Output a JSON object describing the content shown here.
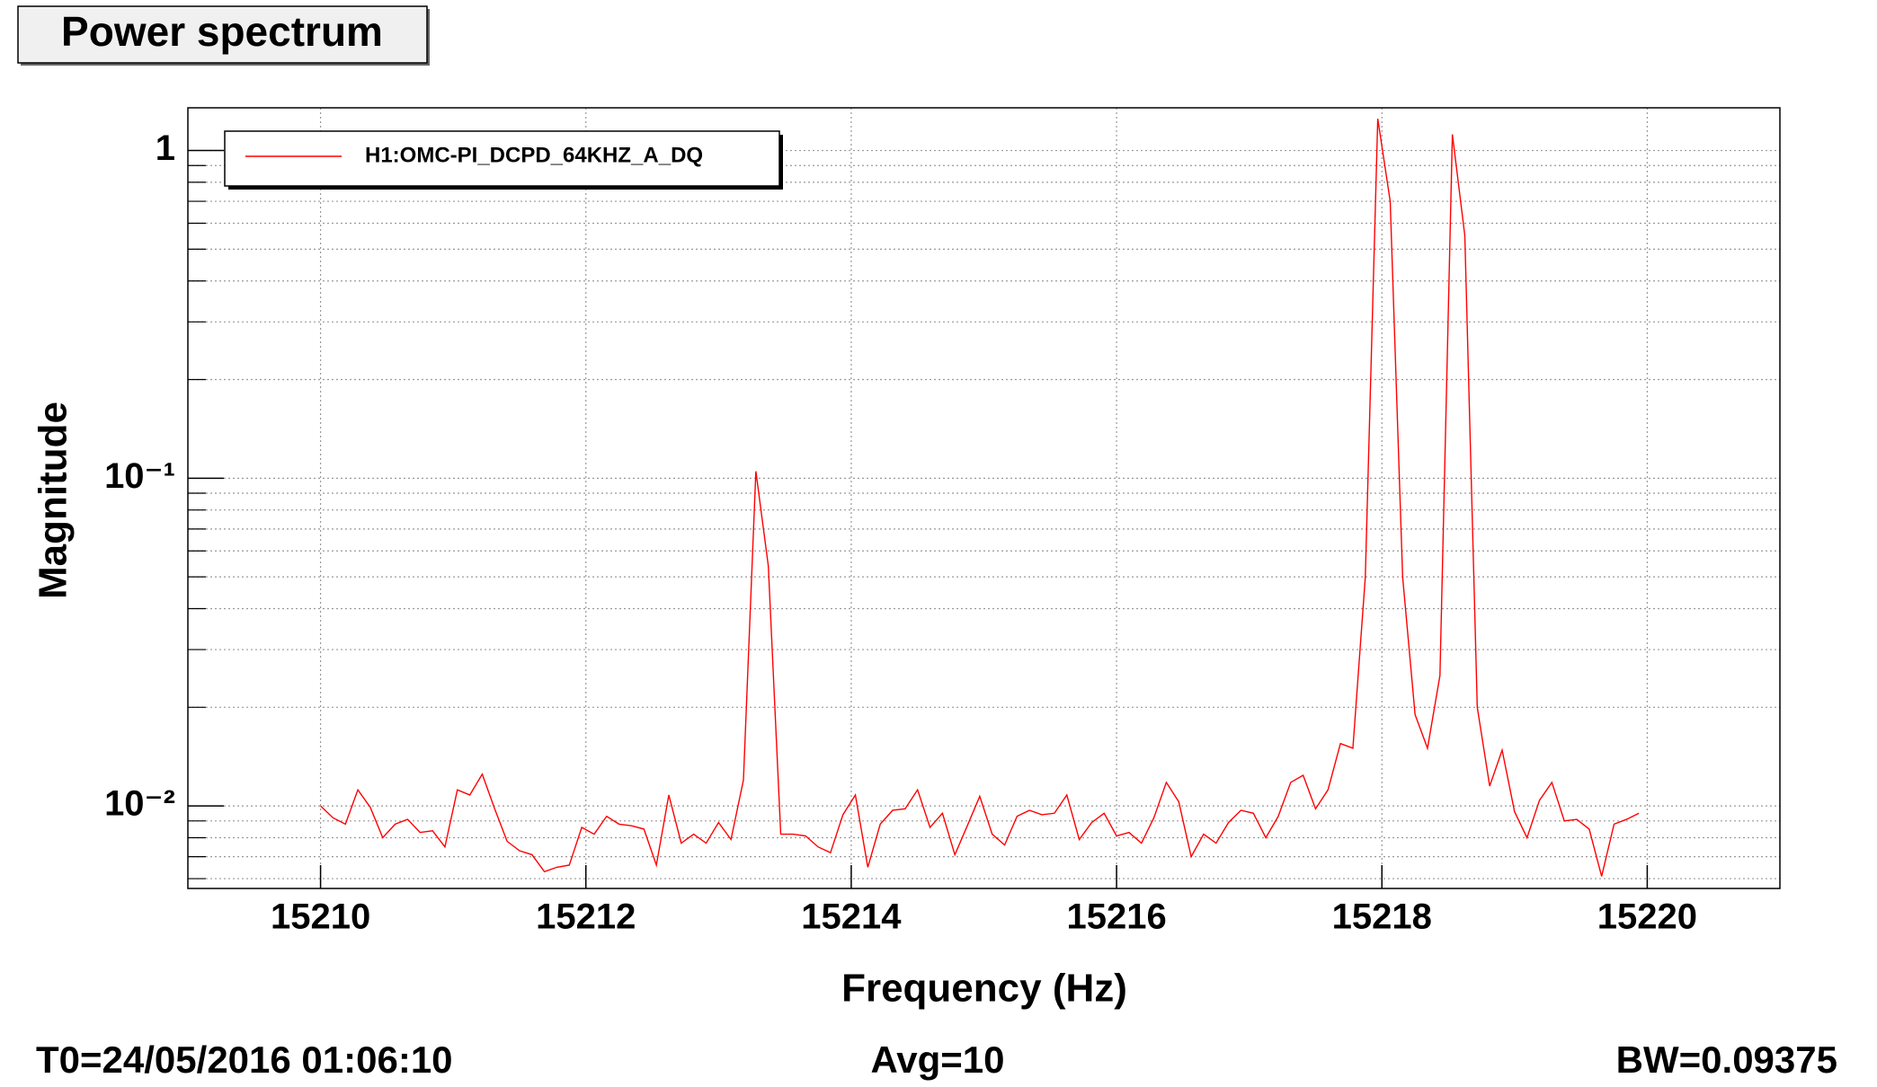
{
  "chart_data": {
    "type": "line",
    "title": "Power spectrum",
    "x_label": "Frequency (Hz)",
    "y_label": "Magnitude",
    "footer": {
      "start_time": "T0=24/05/2016 01:06:10",
      "averages": "Avg=10",
      "bandwidth": "BW=0.09375"
    },
    "log_y": true,
    "grid": true,
    "legend_position": "upper-left",
    "xlim": [
      15209,
      15221
    ],
    "ylim": [
      0.0056,
      1.35
    ],
    "xticks": [
      15210,
      15212,
      15214,
      15216,
      15218,
      15220
    ],
    "yticks": [
      {
        "value": 0.01,
        "label": "10⁻²"
      },
      {
        "value": 0.1,
        "label": "10⁻¹"
      },
      1
    ],
    "yminor_ticks": [
      0.006,
      0.007,
      0.008,
      0.009,
      0.02,
      0.03,
      0.04,
      0.05,
      0.06,
      0.07,
      0.08,
      0.09,
      0.2,
      0.3,
      0.4,
      0.5,
      0.6,
      0.7,
      0.8,
      0.9
    ],
    "x": [
      15210,
      15210.09375,
      15210.1875,
      15210.28125,
      15210.375,
      15210.46875,
      15210.5625,
      15210.65625,
      15210.75,
      15210.84375,
      15210.9375,
      15211.03125,
      15211.125,
      15211.21875,
      15211.3125,
      15211.40625,
      15211.5,
      15211.59375,
      15211.6875,
      15211.78125,
      15211.875,
      15211.96875,
      15212.0625,
      15212.15625,
      15212.25,
      15212.34375,
      15212.4375,
      15212.53125,
      15212.625,
      15212.71875,
      15212.8125,
      15212.90625,
      15213,
      15213.09375,
      15213.1875,
      15213.28125,
      15213.375,
      15213.46875,
      15213.5625,
      15213.65625,
      15213.75,
      15213.84375,
      15213.9375,
      15214.03125,
      15214.125,
      15214.21875,
      15214.3125,
      15214.40625,
      15214.5,
      15214.59375,
      15214.6875,
      15214.78125,
      15214.875,
      15214.96875,
      15215.0625,
      15215.15625,
      15215.25,
      15215.34375,
      15215.4375,
      15215.53125,
      15215.625,
      15215.71875,
      15215.8125,
      15215.90625,
      15216,
      15216.09375,
      15216.1875,
      15216.28125,
      15216.375,
      15216.46875,
      15216.5625,
      15216.65625,
      15216.75,
      15216.84375,
      15216.9375,
      15217.03125,
      15217.125,
      15217.21875,
      15217.3125,
      15217.40625,
      15217.5,
      15217.59375,
      15217.6875,
      15217.78125,
      15217.875,
      15217.96875,
      15218.0625,
      15218.15625,
      15218.25,
      15218.34375,
      15218.4375,
      15218.53125,
      15218.625,
      15218.71875,
      15218.8125,
      15218.90625,
      15219,
      15219.09375,
      15219.1875,
      15219.28125,
      15219.375,
      15219.46875,
      15219.5625,
      15219.65625,
      15219.75,
      15219.84375,
      15219.9375
    ],
    "series": [
      {
        "name": "H1:OMC-PI_DCPD_64KHZ_A_DQ",
        "color": "#ff0000",
        "values": [
          0.01,
          0.0092,
          0.0088,
          0.0112,
          0.0099,
          0.008,
          0.0088,
          0.0091,
          0.0083,
          0.0084,
          0.0075,
          0.0112,
          0.0108,
          0.0125,
          0.0098,
          0.0078,
          0.0073,
          0.0071,
          0.0063,
          0.0065,
          0.0066,
          0.0086,
          0.0082,
          0.0093,
          0.0088,
          0.0087,
          0.0085,
          0.0066,
          0.0108,
          0.0077,
          0.0082,
          0.0077,
          0.0089,
          0.0079,
          0.012,
          0.105,
          0.054,
          0.0082,
          0.0082,
          0.0081,
          0.0075,
          0.0072,
          0.0094,
          0.0108,
          0.0065,
          0.0088,
          0.0097,
          0.0098,
          0.0112,
          0.0086,
          0.0095,
          0.0071,
          0.0087,
          0.0107,
          0.0082,
          0.0076,
          0.0093,
          0.0097,
          0.0094,
          0.0095,
          0.0108,
          0.0079,
          0.0089,
          0.0095,
          0.0081,
          0.0083,
          0.0077,
          0.0092,
          0.0118,
          0.0103,
          0.007,
          0.0082,
          0.0077,
          0.0089,
          0.0097,
          0.0095,
          0.008,
          0.0093,
          0.0118,
          0.0124,
          0.0098,
          0.0112,
          0.0155,
          0.015,
          0.05,
          1.25,
          0.7,
          0.05,
          0.019,
          0.015,
          0.025,
          1.12,
          0.55,
          0.02,
          0.0115,
          0.0148,
          0.0096,
          0.008,
          0.0104,
          0.0118,
          0.009,
          0.0091,
          0.0085,
          0.0061,
          0.0088,
          0.0091,
          0.0095
        ]
      }
    ]
  }
}
